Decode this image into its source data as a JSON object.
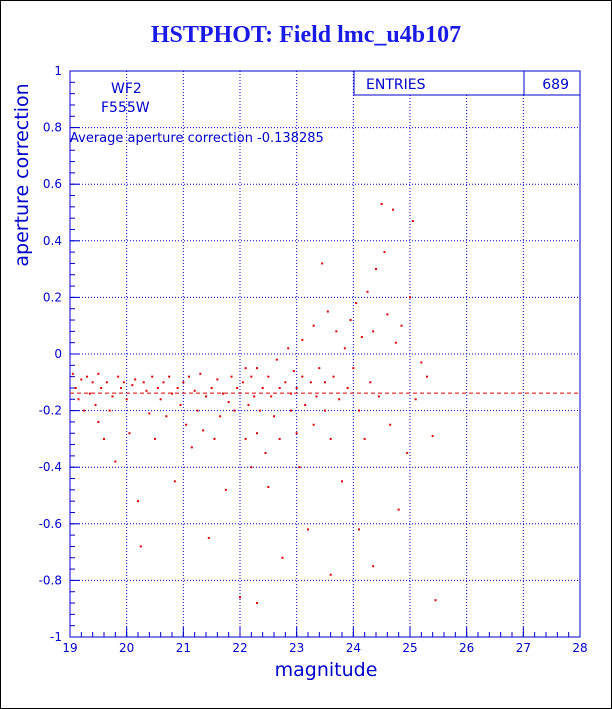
{
  "title": "HSTPHOT: Field lmc_u4b107",
  "colors": {
    "axis": "#0000cc",
    "title": "#1a1ae6",
    "points": "#dd0000",
    "grid": "#0000cc"
  },
  "stats": {
    "entries_label": "ENTRIES",
    "entries_value": "689"
  },
  "annotations": {
    "chip": "WF2",
    "filter": "F555W",
    "average_text": "Average aperture correction -0.138285"
  },
  "chart_data": {
    "type": "scatter",
    "xlabel": "magnitude",
    "ylabel": "aperture correction",
    "xlim": [
      19,
      28
    ],
    "ylim": [
      -1,
      1
    ],
    "grid": true,
    "xticks": [
      "19",
      "20",
      "21",
      "22",
      "23",
      "24",
      "25",
      "26",
      "27",
      "28"
    ],
    "yticks": [
      "-1",
      "-0.8",
      "-0.6",
      "-0.4",
      "-0.2",
      "0",
      "0.2",
      "0.4",
      "0.6",
      "0.8",
      "1"
    ],
    "average_line": -0.138285,
    "points": [
      [
        19.05,
        -0.07
      ],
      [
        19.1,
        -0.12
      ],
      [
        19.15,
        -0.16
      ],
      [
        19.2,
        -0.09
      ],
      [
        19.25,
        -0.2
      ],
      [
        19.3,
        -0.08
      ],
      [
        19.35,
        -0.14
      ],
      [
        19.4,
        -0.1
      ],
      [
        19.45,
        -0.18
      ],
      [
        19.5,
        -0.07
      ],
      [
        19.5,
        -0.24
      ],
      [
        19.55,
        -0.12
      ],
      [
        19.6,
        -0.3
      ],
      [
        19.65,
        -0.1
      ],
      [
        19.7,
        -0.2
      ],
      [
        19.75,
        -0.15
      ],
      [
        19.8,
        -0.38
      ],
      [
        19.85,
        -0.08
      ],
      [
        19.9,
        -0.12
      ],
      [
        19.95,
        -0.1
      ],
      [
        20.0,
        -0.16
      ],
      [
        20.05,
        -0.28
      ],
      [
        20.1,
        -0.11
      ],
      [
        20.15,
        -0.09
      ],
      [
        20.2,
        -0.52
      ],
      [
        20.25,
        -0.68
      ],
      [
        20.3,
        -0.1
      ],
      [
        20.35,
        -0.13
      ],
      [
        20.4,
        -0.21
      ],
      [
        20.45,
        -0.08
      ],
      [
        20.5,
        -0.3
      ],
      [
        20.55,
        -0.12
      ],
      [
        20.6,
        -0.16
      ],
      [
        20.65,
        -0.1
      ],
      [
        20.7,
        -0.22
      ],
      [
        20.75,
        -0.08
      ],
      [
        20.8,
        -0.14
      ],
      [
        20.85,
        -0.45
      ],
      [
        20.9,
        -0.12
      ],
      [
        20.95,
        -0.18
      ],
      [
        21.0,
        -0.1
      ],
      [
        21.05,
        -0.25
      ],
      [
        21.1,
        -0.08
      ],
      [
        21.15,
        -0.33
      ],
      [
        21.2,
        -0.13
      ],
      [
        21.25,
        -0.2
      ],
      [
        21.3,
        -0.07
      ],
      [
        21.35,
        -0.27
      ],
      [
        21.4,
        -0.15
      ],
      [
        21.45,
        -0.65
      ],
      [
        21.5,
        -0.12
      ],
      [
        21.55,
        -0.3
      ],
      [
        21.6,
        -0.09
      ],
      [
        21.65,
        -0.22
      ],
      [
        21.7,
        -0.14
      ],
      [
        21.75,
        -0.48
      ],
      [
        21.8,
        -0.17
      ],
      [
        21.85,
        -0.08
      ],
      [
        21.9,
        -0.2
      ],
      [
        21.95,
        -0.12
      ],
      [
        22.0,
        -0.86
      ],
      [
        22.05,
        -0.1
      ],
      [
        22.1,
        -0.3
      ],
      [
        22.1,
        -0.05
      ],
      [
        22.15,
        -0.18
      ],
      [
        22.2,
        -0.4
      ],
      [
        22.2,
        -0.08
      ],
      [
        22.25,
        -0.15
      ],
      [
        22.3,
        -0.05
      ],
      [
        22.3,
        -0.28
      ],
      [
        22.35,
        -0.2
      ],
      [
        22.4,
        -0.12
      ],
      [
        22.45,
        -0.35
      ],
      [
        22.5,
        -0.08
      ],
      [
        22.5,
        -0.47
      ],
      [
        22.55,
        -0.15
      ],
      [
        22.6,
        -0.22
      ],
      [
        22.65,
        -0.02
      ],
      [
        22.7,
        -0.12
      ],
      [
        22.7,
        -0.3
      ],
      [
        22.75,
        -0.72
      ],
      [
        22.8,
        -0.1
      ],
      [
        22.85,
        0.02
      ],
      [
        22.9,
        -0.2
      ],
      [
        22.9,
        -0.14
      ],
      [
        22.95,
        -0.06
      ],
      [
        23.0,
        -0.28
      ],
      [
        23.0,
        -0.12
      ],
      [
        23.05,
        -0.4
      ],
      [
        23.1,
        -0.08
      ],
      [
        23.1,
        0.05
      ],
      [
        23.15,
        -0.18
      ],
      [
        23.2,
        -0.62
      ],
      [
        23.25,
        -0.1
      ],
      [
        23.3,
        0.1
      ],
      [
        23.3,
        -0.25
      ],
      [
        23.35,
        -0.15
      ],
      [
        23.4,
        -0.05
      ],
      [
        23.45,
        0.32
      ],
      [
        23.5,
        -0.2
      ],
      [
        23.5,
        -0.1
      ],
      [
        23.55,
        0.15
      ],
      [
        23.6,
        -0.3
      ],
      [
        23.65,
        -0.08
      ],
      [
        23.7,
        0.08
      ],
      [
        23.75,
        -0.16
      ],
      [
        23.8,
        -0.45
      ],
      [
        23.85,
        0.02
      ],
      [
        23.9,
        -0.12
      ],
      [
        23.95,
        0.12
      ],
      [
        24.0,
        -0.05
      ],
      [
        24.05,
        0.18
      ],
      [
        24.1,
        -0.2
      ],
      [
        24.15,
        0.06
      ],
      [
        24.2,
        -0.3
      ],
      [
        24.25,
        0.22
      ],
      [
        24.3,
        -0.1
      ],
      [
        24.35,
        0.08
      ],
      [
        24.4,
        0.3
      ],
      [
        24.45,
        -0.15
      ],
      [
        24.5,
        0.53
      ],
      [
        24.55,
        0.36
      ],
      [
        24.6,
        0.14
      ],
      [
        24.65,
        -0.25
      ],
      [
        24.7,
        0.51
      ],
      [
        24.75,
        0.04
      ],
      [
        24.8,
        -0.55
      ],
      [
        24.85,
        0.1
      ],
      [
        24.95,
        -0.35
      ],
      [
        25.0,
        0.2
      ],
      [
        25.05,
        0.47
      ],
      [
        25.1,
        -0.16
      ],
      [
        25.2,
        -0.03
      ],
      [
        25.3,
        -0.08
      ],
      [
        25.4,
        -0.29
      ],
      [
        25.45,
        -0.87
      ],
      [
        24.35,
        -0.75
      ],
      [
        23.6,
        -0.78
      ],
      [
        22.3,
        -0.88
      ],
      [
        24.1,
        -0.62
      ]
    ]
  }
}
